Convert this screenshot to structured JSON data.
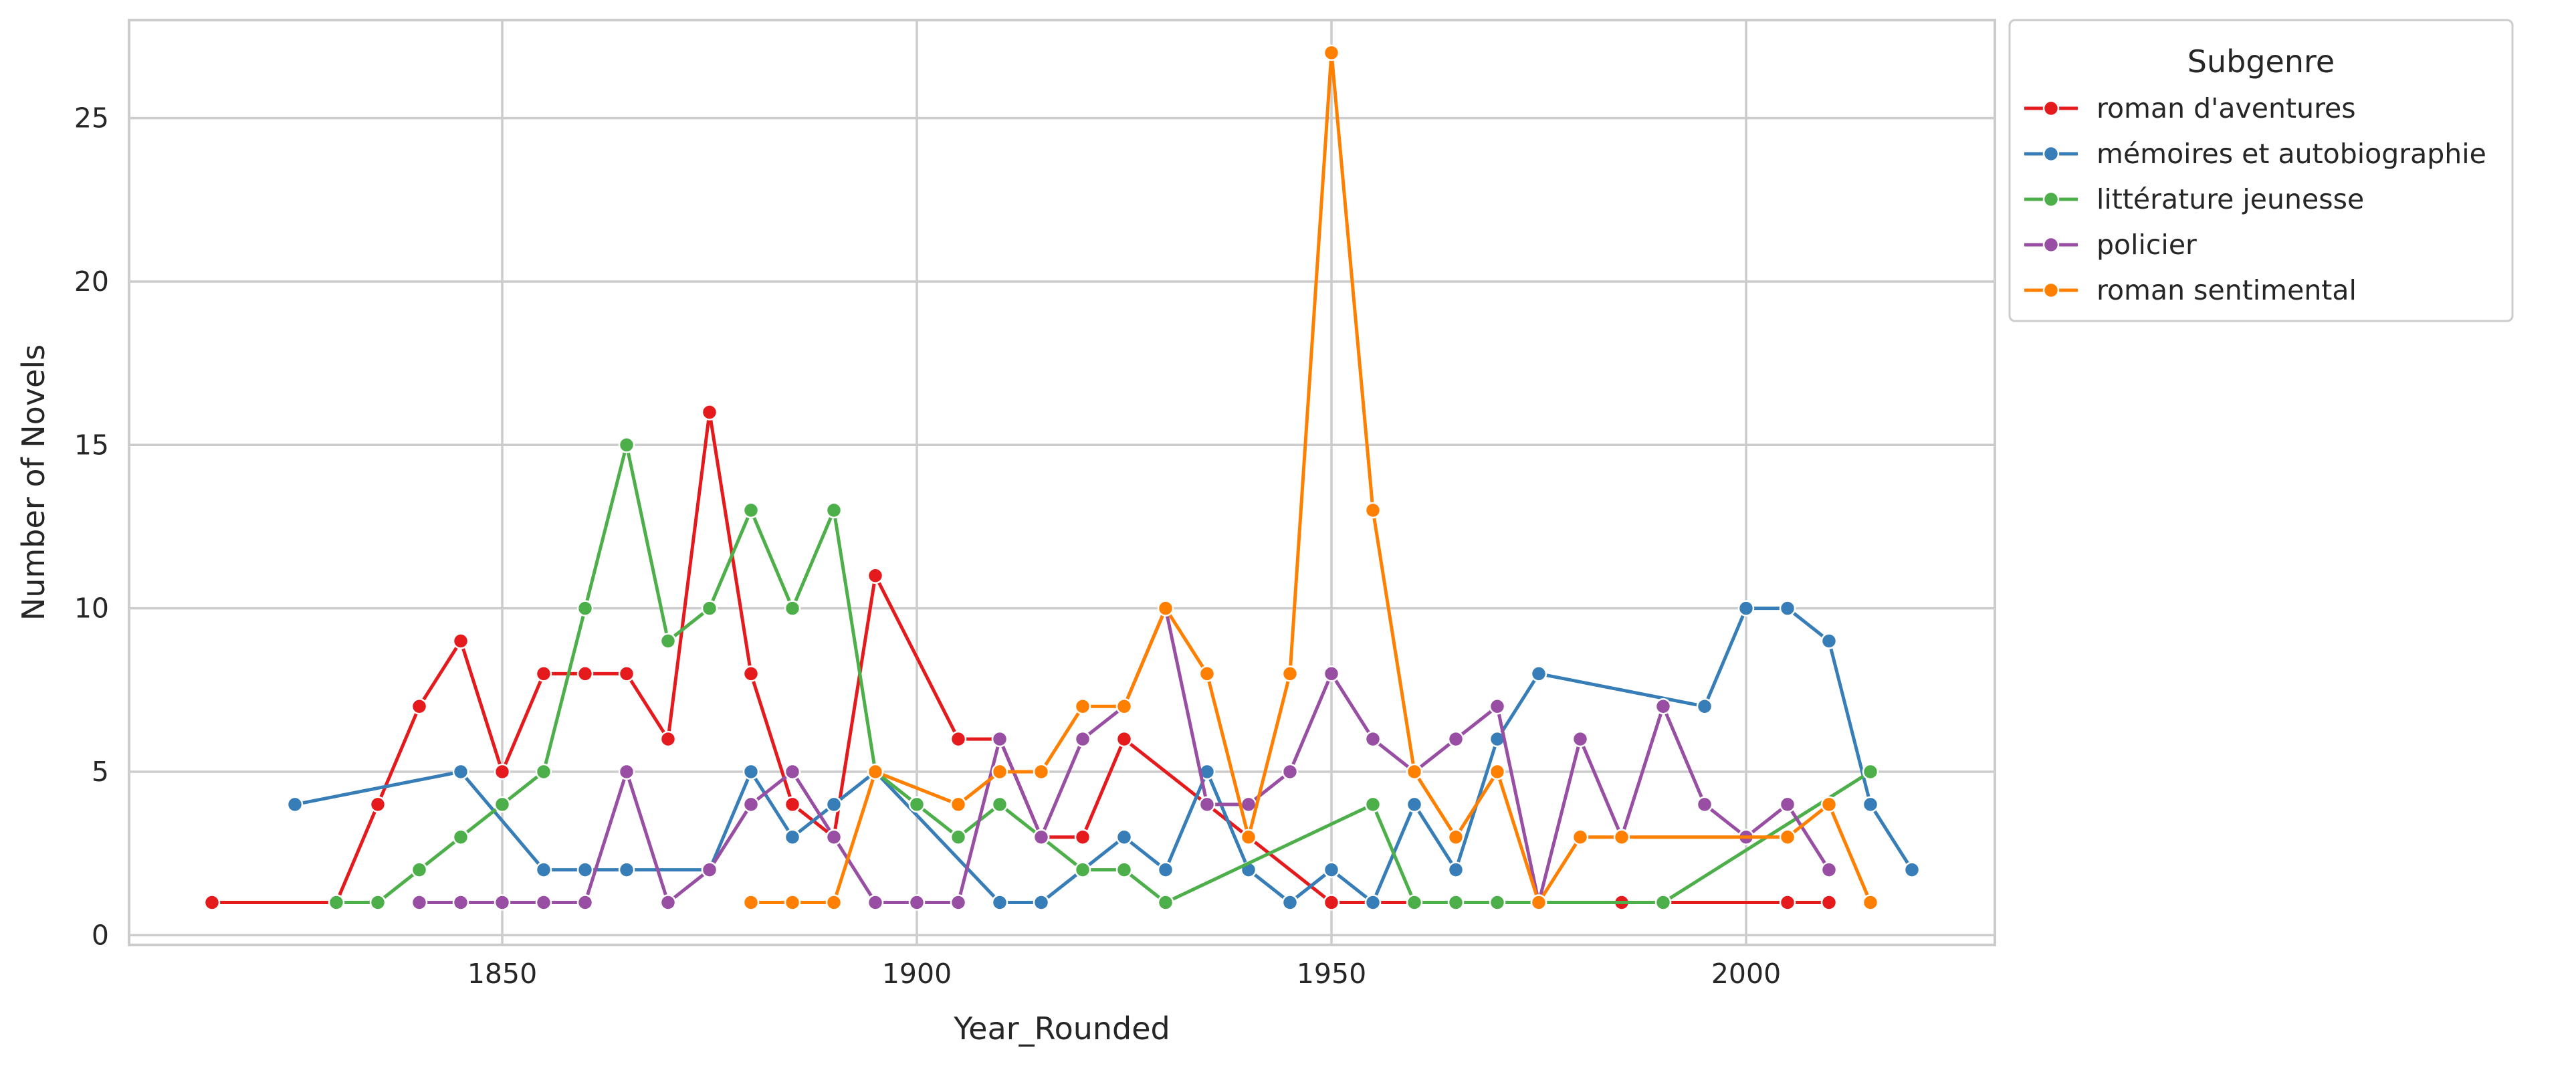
{
  "chart_data": {
    "type": "line",
    "xlabel": "Year_Rounded",
    "ylabel": "Number of Novels",
    "xlim": [
      1805,
      2030
    ],
    "ylim": [
      -0.3,
      28
    ],
    "xticks": [
      1850,
      1900,
      1950,
      2000
    ],
    "yticks": [
      0,
      5,
      10,
      15,
      20,
      25
    ],
    "grid": true,
    "legend": {
      "title": "Subgenre",
      "placement": "outside-top-right"
    },
    "series": [
      {
        "name": "roman d'aventures",
        "color": "#e41a1c",
        "x": [
          1815,
          1830,
          1835,
          1840,
          1845,
          1850,
          1855,
          1860,
          1865,
          1870,
          1875,
          1880,
          1885,
          1890,
          1895,
          1905,
          1910,
          1915,
          1920,
          1925,
          1950,
          1955,
          1960,
          1985,
          1990,
          2005,
          2010
        ],
        "y": [
          1,
          1,
          4,
          7,
          9,
          5,
          8,
          8,
          8,
          6,
          16,
          8,
          4,
          3,
          11,
          6,
          6,
          3,
          3,
          6,
          1,
          1,
          1,
          1,
          1,
          1,
          1
        ]
      },
      {
        "name": "mémoires et autobiographie",
        "color": "#377eb8",
        "x": [
          1825,
          1845,
          1855,
          1860,
          1865,
          1875,
          1880,
          1885,
          1890,
          1895,
          1910,
          1915,
          1920,
          1925,
          1930,
          1935,
          1940,
          1945,
          1950,
          1955,
          1960,
          1965,
          1970,
          1975,
          1995,
          2000,
          2005,
          2010,
          2015,
          2020
        ],
        "y": [
          4,
          5,
          2,
          2,
          2,
          2,
          5,
          3,
          4,
          5,
          1,
          1,
          2,
          3,
          2,
          5,
          2,
          1,
          2,
          1,
          4,
          2,
          6,
          8,
          7,
          10,
          10,
          9,
          4,
          2
        ]
      },
      {
        "name": "littérature jeunesse",
        "color": "#4daf4a",
        "x": [
          1830,
          1835,
          1840,
          1845,
          1850,
          1855,
          1860,
          1865,
          1870,
          1875,
          1880,
          1885,
          1890,
          1895,
          1900,
          1905,
          1910,
          1915,
          1920,
          1925,
          1930,
          1955,
          1960,
          1965,
          1970,
          1975,
          1990,
          2015
        ],
        "y": [
          1,
          1,
          2,
          3,
          4,
          5,
          10,
          15,
          9,
          10,
          13,
          10,
          13,
          5,
          4,
          3,
          4,
          3,
          2,
          2,
          1,
          4,
          1,
          1,
          1,
          1,
          1,
          5
        ]
      },
      {
        "name": "policier",
        "color": "#984ea3",
        "x": [
          1840,
          1845,
          1850,
          1855,
          1860,
          1865,
          1870,
          1875,
          1880,
          1885,
          1890,
          1895,
          1900,
          1905,
          1910,
          1915,
          1920,
          1925,
          1930,
          1935,
          1940,
          1945,
          1950,
          1955,
          1960,
          1965,
          1970,
          1975,
          1980,
          1985,
          1990,
          1995,
          2000,
          2005,
          2010
        ],
        "y": [
          1,
          1,
          1,
          1,
          1,
          5,
          1,
          2,
          4,
          5,
          3,
          1,
          1,
          1,
          6,
          3,
          6,
          7,
          10,
          4,
          4,
          5,
          8,
          6,
          5,
          6,
          7,
          1,
          6,
          3,
          7,
          4,
          3,
          4,
          2
        ]
      },
      {
        "name": "roman sentimental",
        "color": "#ff7f00",
        "x": [
          1880,
          1885,
          1890,
          1895,
          1905,
          1910,
          1915,
          1920,
          1925,
          1930,
          1935,
          1940,
          1945,
          1950,
          1955,
          1960,
          1965,
          1970,
          1975,
          1980,
          1985,
          2005,
          2010,
          2015
        ],
        "y": [
          1,
          1,
          1,
          5,
          4,
          5,
          5,
          7,
          7,
          10,
          8,
          3,
          8,
          27,
          13,
          5,
          3,
          5,
          1,
          3,
          3,
          3,
          4,
          1
        ]
      }
    ]
  }
}
